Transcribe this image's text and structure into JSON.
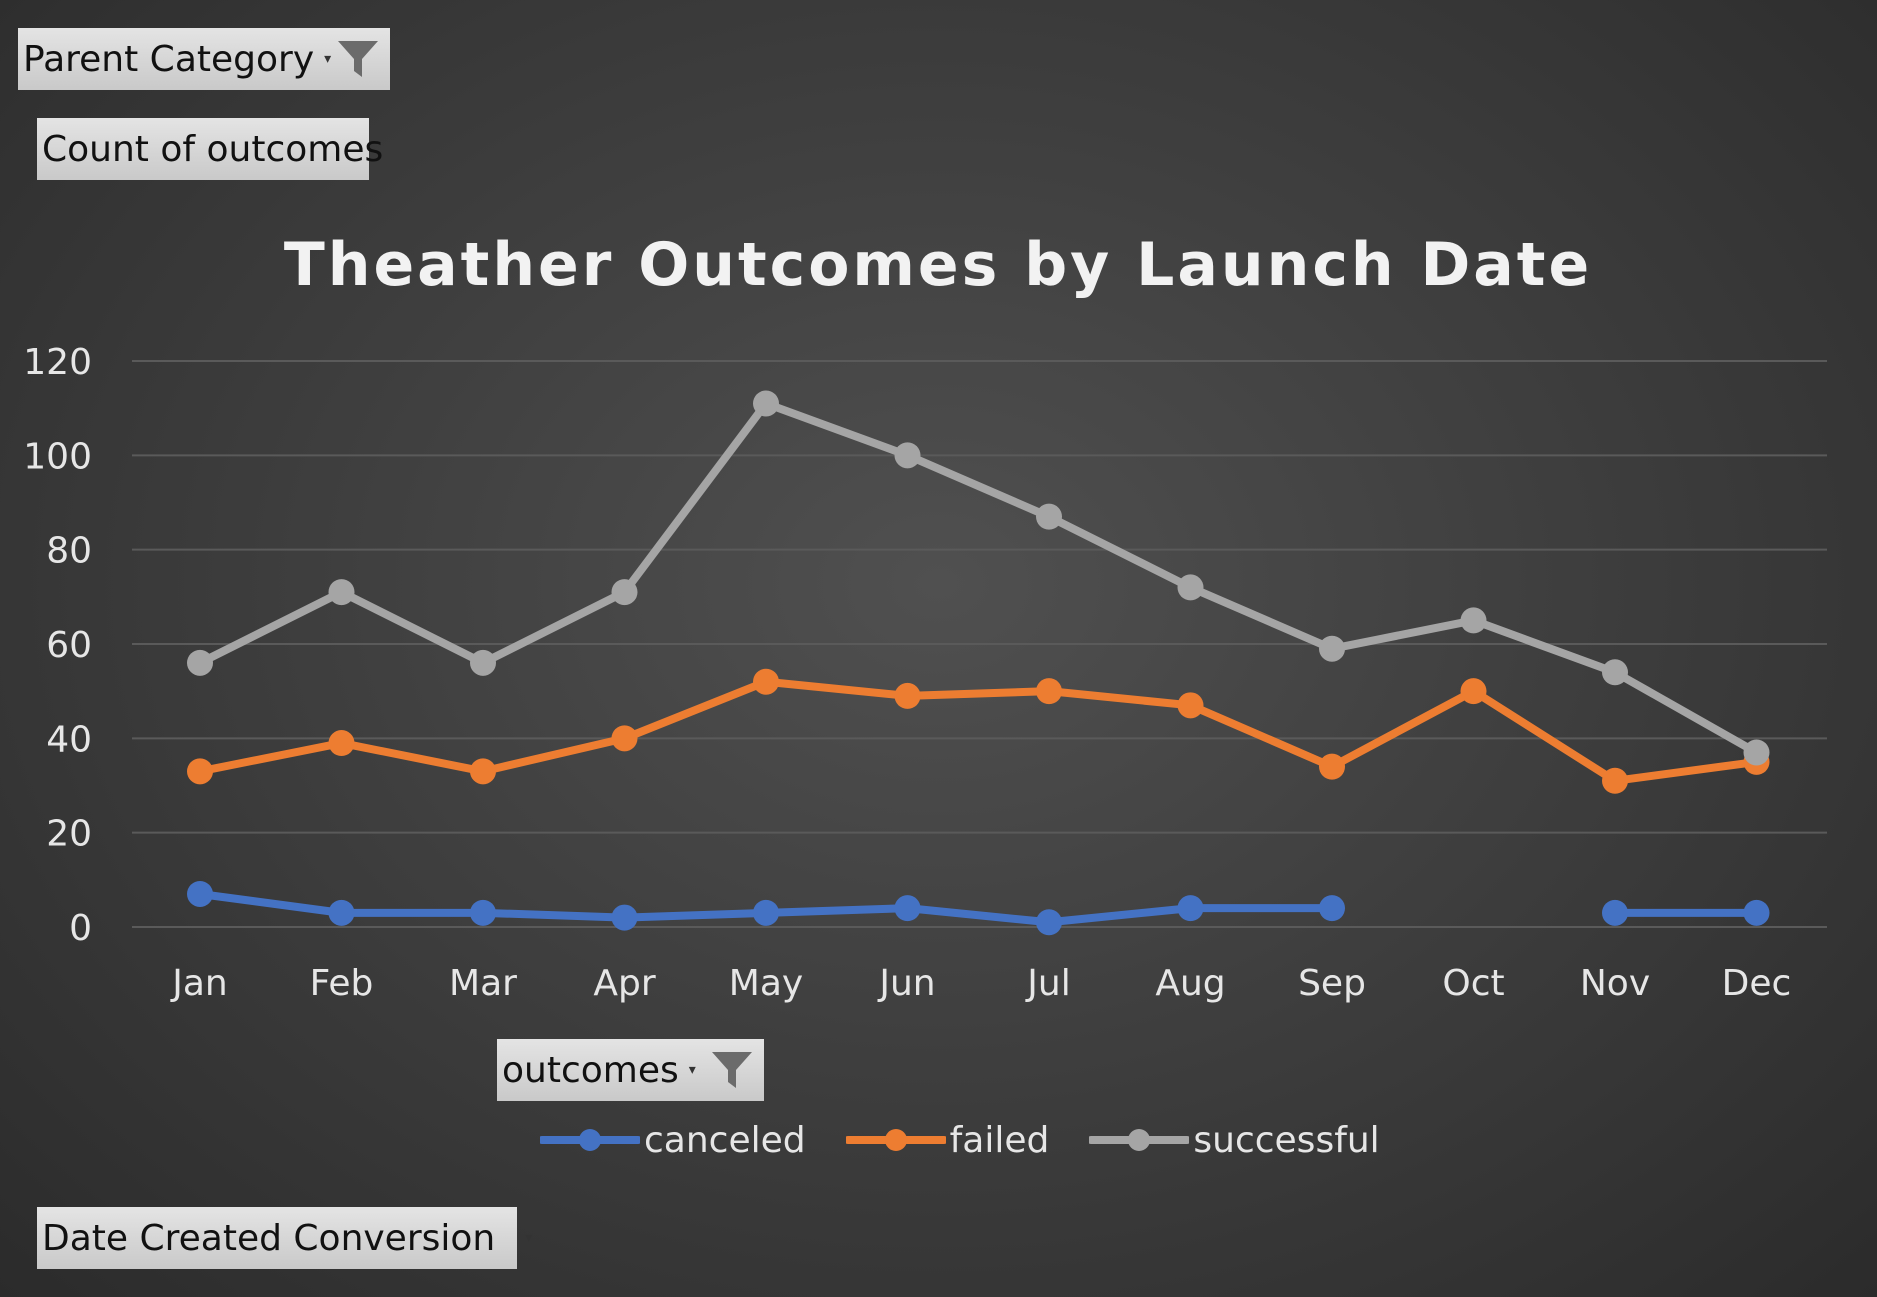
{
  "filters": {
    "parent_category_label": "Parent Category",
    "count_label": "Count of outcomes",
    "outcomes_label": "outcomes",
    "date_label": "Date Created Conversion"
  },
  "colors": {
    "canceled": "#4472c4",
    "failed": "#ed7d31",
    "successful": "#a5a5a5",
    "grid": "#5a5a5a",
    "text": "#e6e6e6"
  },
  "chart_data": {
    "type": "line",
    "title": "Theather Outcomes by Launch Date",
    "categories": [
      "Jan",
      "Feb",
      "Mar",
      "Apr",
      "May",
      "Jun",
      "Jul",
      "Aug",
      "Sep",
      "Oct",
      "Nov",
      "Dec"
    ],
    "series": [
      {
        "name": "canceled",
        "values": [
          7,
          3,
          3,
          2,
          3,
          4,
          1,
          4,
          4,
          null,
          3,
          3
        ]
      },
      {
        "name": "failed",
        "values": [
          33,
          39,
          33,
          40,
          52,
          49,
          50,
          47,
          34,
          50,
          31,
          35
        ]
      },
      {
        "name": "successful",
        "values": [
          56,
          71,
          56,
          71,
          111,
          100,
          87,
          72,
          59,
          65,
          54,
          37
        ]
      }
    ],
    "ylim": [
      0,
      120
    ],
    "yticks": [
      0,
      20,
      40,
      60,
      80,
      100,
      120
    ],
    "grid": true,
    "legend": "bottom"
  }
}
